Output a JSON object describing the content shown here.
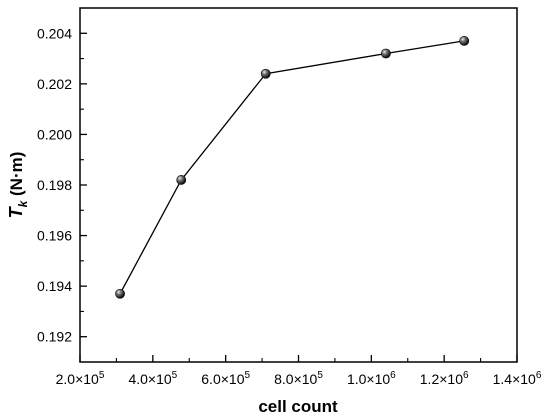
{
  "chart_data": {
    "type": "line",
    "xlabel": "cell count",
    "ylabel": {
      "base": "T",
      "subscript": "k",
      "unit": " (N·m)"
    },
    "xlim": [
      200000,
      1400000
    ],
    "ylim": [
      0.191,
      0.205
    ],
    "x_ticks": [
      {
        "value": 200000,
        "mantissa": "2.0×10",
        "exp": "5"
      },
      {
        "value": 400000,
        "mantissa": "4.0×10",
        "exp": "5"
      },
      {
        "value": 600000,
        "mantissa": "6.0×10",
        "exp": "5"
      },
      {
        "value": 800000,
        "mantissa": "8.0×10",
        "exp": "5"
      },
      {
        "value": 1000000,
        "mantissa": "1.0×10",
        "exp": "6"
      },
      {
        "value": 1200000,
        "mantissa": "1.2×10",
        "exp": "6"
      },
      {
        "value": 1400000,
        "mantissa": "1.4×10",
        "exp": "6"
      }
    ],
    "y_ticks": [
      {
        "value": 0.192,
        "label": "0.192"
      },
      {
        "value": 0.194,
        "label": "0.194"
      },
      {
        "value": 0.196,
        "label": "0.196"
      },
      {
        "value": 0.198,
        "label": "0.198"
      },
      {
        "value": 0.2,
        "label": "0.200"
      },
      {
        "value": 0.202,
        "label": "0.202"
      },
      {
        "value": 0.204,
        "label": "0.204"
      }
    ],
    "series": [
      {
        "x": [
          310000,
          478000,
          710000,
          1040000,
          1255000
        ],
        "y": [
          0.1937,
          0.1982,
          0.2024,
          0.2032,
          0.2037
        ]
      }
    ],
    "grid": false,
    "legend": "none",
    "colors": {
      "line": "#000000",
      "marker": "#111111",
      "axis": "#000000"
    }
  }
}
